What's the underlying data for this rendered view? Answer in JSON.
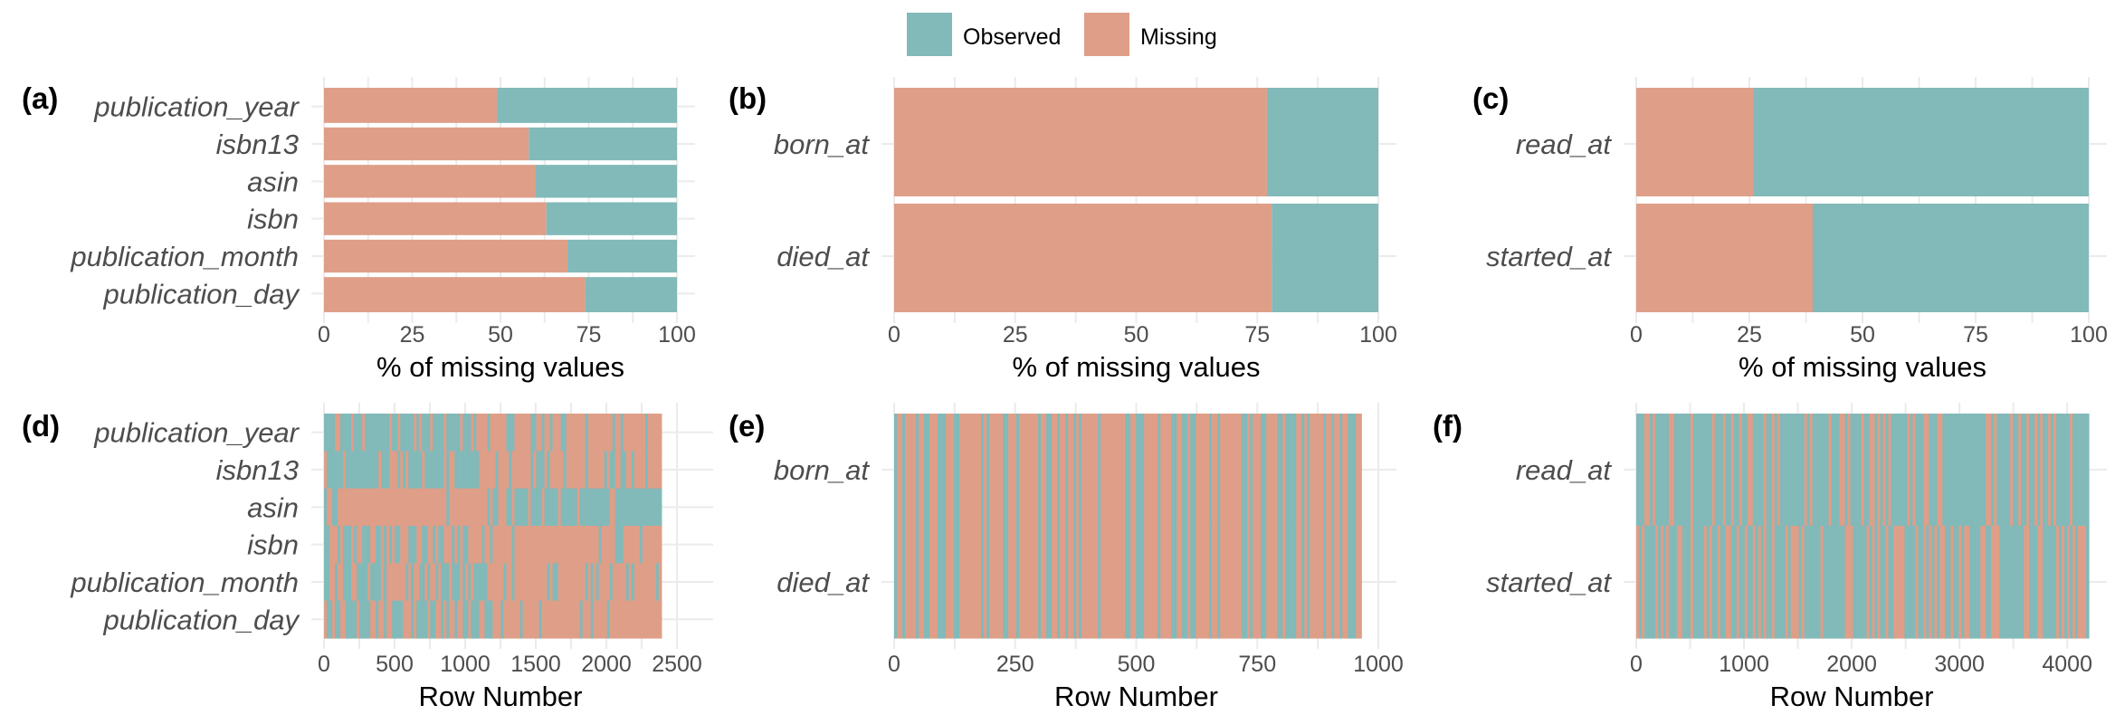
{
  "colors": {
    "observed": "#82b9b9",
    "missing": "#df9e88"
  },
  "legend": {
    "placement": "top-center",
    "items": [
      {
        "key": "observed",
        "label": "Observed"
      },
      {
        "key": "missing",
        "label": "Missing"
      }
    ]
  },
  "chart_data": [
    {
      "letter": "(a)",
      "type": "bar",
      "orientation": "horizontal",
      "stacked": true,
      "categories": [
        "publication_year",
        "isbn13",
        "asin",
        "isbn",
        "publication_month",
        "publication_day"
      ],
      "values": [
        49,
        58,
        60,
        63,
        69,
        74
      ],
      "xlabel": "% of missing values",
      "xlim": [
        0,
        100
      ],
      "xticks": [
        0,
        25,
        50,
        75,
        100
      ]
    },
    {
      "letter": "(b)",
      "type": "bar",
      "orientation": "horizontal",
      "stacked": true,
      "categories": [
        "born_at",
        "died_at"
      ],
      "values": [
        77,
        78
      ],
      "xlabel": "% of missing values",
      "xlim": [
        0,
        100
      ],
      "xticks": [
        0,
        25,
        50,
        75,
        100
      ]
    },
    {
      "letter": "(c)",
      "type": "bar",
      "orientation": "horizontal",
      "stacked": true,
      "categories": [
        "read_at",
        "started_at"
      ],
      "values": [
        26,
        39
      ],
      "xlabel": "% of missing values",
      "xlim": [
        0,
        100
      ],
      "xticks": [
        0,
        25,
        50,
        75,
        100
      ]
    },
    {
      "letter": "(d)",
      "type": "heatmap",
      "categories": [
        "publication_year",
        "isbn13",
        "asin",
        "isbn",
        "publication_month",
        "publication_day"
      ],
      "rows": 2390,
      "xlabel": "Row Number",
      "xlim": [
        0,
        2500
      ],
      "xticks": [
        0,
        500,
        1000,
        1500,
        2000,
        2500
      ]
    },
    {
      "letter": "(e)",
      "type": "heatmap",
      "categories": [
        "born_at",
        "died_at"
      ],
      "rows": 965,
      "xlabel": "Row Number",
      "xlim": [
        0,
        1000
      ],
      "xticks": [
        0,
        250,
        500,
        750,
        1000
      ]
    },
    {
      "letter": "(f)",
      "type": "heatmap",
      "categories": [
        "read_at",
        "started_at"
      ],
      "rows": 4200,
      "xlabel": "Row Number",
      "xlim": [
        0,
        4200
      ],
      "xticks": [
        0,
        1000,
        2000,
        3000,
        4000
      ]
    }
  ]
}
